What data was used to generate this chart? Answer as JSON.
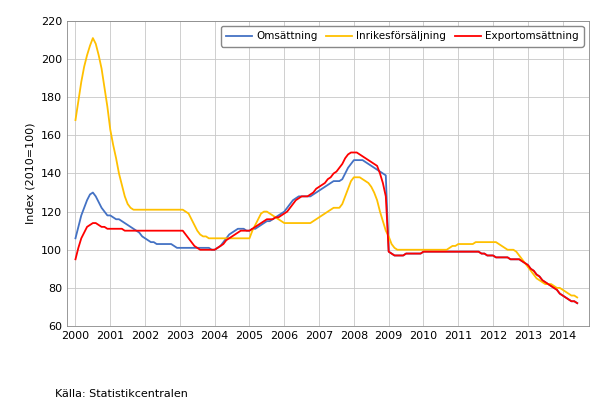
{
  "ylabel": "Index (2010=100)",
  "source_text": "Källa: Statistikcentralen",
  "ylim": [
    60,
    220
  ],
  "yticks": [
    60,
    80,
    100,
    120,
    140,
    160,
    180,
    200,
    220
  ],
  "xlim": [
    1999.75,
    2014.75
  ],
  "xticks": [
    2000,
    2001,
    2002,
    2003,
    2004,
    2005,
    2006,
    2007,
    2008,
    2009,
    2010,
    2011,
    2012,
    2013,
    2014
  ],
  "legend_labels": [
    "Omsättning",
    "Inrikesförsäljning",
    "Exportomsättning"
  ],
  "legend_colors": [
    "#4472C4",
    "#FFC000",
    "#FF0000"
  ],
  "line_width": 1.3,
  "grid_color": "#C8C8C8",
  "omsattning_x": [
    2000.0,
    2000.083,
    2000.167,
    2000.25,
    2000.333,
    2000.417,
    2000.5,
    2000.583,
    2000.667,
    2000.75,
    2000.833,
    2000.917,
    2001.0,
    2001.083,
    2001.167,
    2001.25,
    2001.333,
    2001.417,
    2001.5,
    2001.583,
    2001.667,
    2001.75,
    2001.833,
    2001.917,
    2002.0,
    2002.083,
    2002.167,
    2002.25,
    2002.333,
    2002.417,
    2002.5,
    2002.583,
    2002.667,
    2002.75,
    2002.833,
    2002.917,
    2003.0,
    2003.083,
    2003.167,
    2003.25,
    2003.333,
    2003.417,
    2003.5,
    2003.583,
    2003.667,
    2003.75,
    2003.833,
    2003.917,
    2004.0,
    2004.083,
    2004.167,
    2004.25,
    2004.333,
    2004.417,
    2004.5,
    2004.583,
    2004.667,
    2004.75,
    2004.833,
    2004.917,
    2005.0,
    2005.083,
    2005.167,
    2005.25,
    2005.333,
    2005.417,
    2005.5,
    2005.583,
    2005.667,
    2005.75,
    2005.833,
    2005.917,
    2006.0,
    2006.083,
    2006.167,
    2006.25,
    2006.333,
    2006.417,
    2006.5,
    2006.583,
    2006.667,
    2006.75,
    2006.833,
    2006.917,
    2007.0,
    2007.083,
    2007.167,
    2007.25,
    2007.333,
    2007.417,
    2007.5,
    2007.583,
    2007.667,
    2007.75,
    2007.833,
    2007.917,
    2008.0,
    2008.083,
    2008.167,
    2008.25,
    2008.333,
    2008.417,
    2008.5,
    2008.583,
    2008.667,
    2008.75,
    2008.833,
    2008.917,
    2009.0,
    2009.083,
    2009.167,
    2009.25,
    2009.333,
    2009.417,
    2009.5,
    2009.583,
    2009.667,
    2009.75,
    2009.833,
    2009.917,
    2010.0,
    2010.083,
    2010.167,
    2010.25,
    2010.333,
    2010.417,
    2010.5,
    2010.583,
    2010.667,
    2010.75,
    2010.833,
    2010.917,
    2011.0,
    2011.083,
    2011.167,
    2011.25,
    2011.333,
    2011.417,
    2011.5,
    2011.583,
    2011.667,
    2011.75,
    2011.833,
    2011.917,
    2012.0,
    2012.083,
    2012.167,
    2012.25,
    2012.333,
    2012.417,
    2012.5,
    2012.583,
    2012.667,
    2012.75,
    2012.833,
    2012.917,
    2013.0,
    2013.083,
    2013.167,
    2013.25,
    2013.333,
    2013.417,
    2013.5,
    2013.583,
    2013.667,
    2013.75,
    2013.833,
    2013.917,
    2014.0,
    2014.083,
    2014.167,
    2014.25,
    2014.333,
    2014.417
  ],
  "omsattning_y": [
    106,
    112,
    118,
    122,
    126,
    129,
    130,
    128,
    125,
    122,
    120,
    118,
    118,
    117,
    116,
    116,
    115,
    114,
    113,
    112,
    111,
    110,
    109,
    107,
    106,
    105,
    104,
    104,
    103,
    103,
    103,
    103,
    103,
    103,
    102,
    101,
    101,
    101,
    101,
    101,
    101,
    101,
    101,
    101,
    101,
    101,
    101,
    100,
    100,
    101,
    102,
    104,
    106,
    108,
    109,
    110,
    111,
    111,
    111,
    110,
    110,
    111,
    111,
    112,
    113,
    114,
    115,
    115,
    116,
    117,
    118,
    119,
    120,
    122,
    124,
    126,
    127,
    128,
    128,
    128,
    128,
    128,
    129,
    130,
    131,
    132,
    133,
    134,
    135,
    136,
    136,
    136,
    137,
    140,
    143,
    145,
    147,
    147,
    147,
    147,
    146,
    145,
    144,
    143,
    142,
    141,
    140,
    139,
    99,
    98,
    97,
    97,
    97,
    97,
    98,
    98,
    98,
    98,
    98,
    98,
    99,
    99,
    99,
    99,
    99,
    99,
    99,
    99,
    99,
    99,
    99,
    99,
    99,
    99,
    99,
    99,
    99,
    99,
    99,
    99,
    98,
    98,
    97,
    97,
    97,
    96,
    96,
    96,
    96,
    96,
    95,
    95,
    95,
    95,
    94,
    93,
    92,
    90,
    89,
    87,
    86,
    84,
    83,
    82,
    81,
    80,
    79,
    77,
    76,
    75,
    74,
    73,
    73,
    72
  ],
  "inrikes_x": [
    2000.0,
    2000.083,
    2000.167,
    2000.25,
    2000.333,
    2000.417,
    2000.5,
    2000.583,
    2000.667,
    2000.75,
    2000.833,
    2000.917,
    2001.0,
    2001.083,
    2001.167,
    2001.25,
    2001.333,
    2001.417,
    2001.5,
    2001.583,
    2001.667,
    2001.75,
    2001.833,
    2001.917,
    2002.0,
    2002.083,
    2002.167,
    2002.25,
    2002.333,
    2002.417,
    2002.5,
    2002.583,
    2002.667,
    2002.75,
    2002.833,
    2002.917,
    2003.0,
    2003.083,
    2003.167,
    2003.25,
    2003.333,
    2003.417,
    2003.5,
    2003.583,
    2003.667,
    2003.75,
    2003.833,
    2003.917,
    2004.0,
    2004.083,
    2004.167,
    2004.25,
    2004.333,
    2004.417,
    2004.5,
    2004.583,
    2004.667,
    2004.75,
    2004.833,
    2004.917,
    2005.0,
    2005.083,
    2005.167,
    2005.25,
    2005.333,
    2005.417,
    2005.5,
    2005.583,
    2005.667,
    2005.75,
    2005.833,
    2005.917,
    2006.0,
    2006.083,
    2006.167,
    2006.25,
    2006.333,
    2006.417,
    2006.5,
    2006.583,
    2006.667,
    2006.75,
    2006.833,
    2006.917,
    2007.0,
    2007.083,
    2007.167,
    2007.25,
    2007.333,
    2007.417,
    2007.5,
    2007.583,
    2007.667,
    2007.75,
    2007.833,
    2007.917,
    2008.0,
    2008.083,
    2008.167,
    2008.25,
    2008.333,
    2008.417,
    2008.5,
    2008.583,
    2008.667,
    2008.75,
    2008.833,
    2008.917,
    2009.0,
    2009.083,
    2009.167,
    2009.25,
    2009.333,
    2009.417,
    2009.5,
    2009.583,
    2009.667,
    2009.75,
    2009.833,
    2009.917,
    2010.0,
    2010.083,
    2010.167,
    2010.25,
    2010.333,
    2010.417,
    2010.5,
    2010.583,
    2010.667,
    2010.75,
    2010.833,
    2010.917,
    2011.0,
    2011.083,
    2011.167,
    2011.25,
    2011.333,
    2011.417,
    2011.5,
    2011.583,
    2011.667,
    2011.75,
    2011.833,
    2011.917,
    2012.0,
    2012.083,
    2012.167,
    2012.25,
    2012.333,
    2012.417,
    2012.5,
    2012.583,
    2012.667,
    2012.75,
    2012.833,
    2012.917,
    2013.0,
    2013.083,
    2013.167,
    2013.25,
    2013.333,
    2013.417,
    2013.5,
    2013.583,
    2013.667,
    2013.75,
    2013.833,
    2013.917,
    2014.0,
    2014.083,
    2014.167,
    2014.25,
    2014.333,
    2014.417
  ],
  "inrikes_y": [
    168,
    178,
    188,
    196,
    202,
    207,
    211,
    208,
    202,
    195,
    185,
    175,
    163,
    155,
    148,
    140,
    134,
    128,
    124,
    122,
    121,
    121,
    121,
    121,
    121,
    121,
    121,
    121,
    121,
    121,
    121,
    121,
    121,
    121,
    121,
    121,
    121,
    121,
    120,
    119,
    116,
    113,
    110,
    108,
    107,
    107,
    106,
    106,
    106,
    106,
    106,
    106,
    106,
    106,
    106,
    106,
    106,
    106,
    106,
    106,
    106,
    110,
    113,
    116,
    119,
    120,
    120,
    119,
    118,
    117,
    116,
    115,
    114,
    114,
    114,
    114,
    114,
    114,
    114,
    114,
    114,
    114,
    115,
    116,
    117,
    118,
    119,
    120,
    121,
    122,
    122,
    122,
    124,
    128,
    132,
    136,
    138,
    138,
    138,
    137,
    136,
    135,
    133,
    130,
    126,
    120,
    115,
    110,
    107,
    103,
    101,
    100,
    100,
    100,
    100,
    100,
    100,
    100,
    100,
    100,
    100,
    100,
    100,
    100,
    100,
    100,
    100,
    100,
    100,
    101,
    102,
    102,
    103,
    103,
    103,
    103,
    103,
    103,
    104,
    104,
    104,
    104,
    104,
    104,
    104,
    104,
    103,
    102,
    101,
    100,
    100,
    100,
    99,
    97,
    95,
    93,
    91,
    89,
    87,
    85,
    84,
    83,
    82,
    82,
    82,
    81,
    80,
    80,
    79,
    78,
    77,
    76,
    76,
    75
  ],
  "export_x": [
    2000.0,
    2000.083,
    2000.167,
    2000.25,
    2000.333,
    2000.417,
    2000.5,
    2000.583,
    2000.667,
    2000.75,
    2000.833,
    2000.917,
    2001.0,
    2001.083,
    2001.167,
    2001.25,
    2001.333,
    2001.417,
    2001.5,
    2001.583,
    2001.667,
    2001.75,
    2001.833,
    2001.917,
    2002.0,
    2002.083,
    2002.167,
    2002.25,
    2002.333,
    2002.417,
    2002.5,
    2002.583,
    2002.667,
    2002.75,
    2002.833,
    2002.917,
    2003.0,
    2003.083,
    2003.167,
    2003.25,
    2003.333,
    2003.417,
    2003.5,
    2003.583,
    2003.667,
    2003.75,
    2003.833,
    2003.917,
    2004.0,
    2004.083,
    2004.167,
    2004.25,
    2004.333,
    2004.417,
    2004.5,
    2004.583,
    2004.667,
    2004.75,
    2004.833,
    2004.917,
    2005.0,
    2005.083,
    2005.167,
    2005.25,
    2005.333,
    2005.417,
    2005.5,
    2005.583,
    2005.667,
    2005.75,
    2005.833,
    2005.917,
    2006.0,
    2006.083,
    2006.167,
    2006.25,
    2006.333,
    2006.417,
    2006.5,
    2006.583,
    2006.667,
    2006.75,
    2006.833,
    2006.917,
    2007.0,
    2007.083,
    2007.167,
    2007.25,
    2007.333,
    2007.417,
    2007.5,
    2007.583,
    2007.667,
    2007.75,
    2007.833,
    2007.917,
    2008.0,
    2008.083,
    2008.167,
    2008.25,
    2008.333,
    2008.417,
    2008.5,
    2008.583,
    2008.667,
    2008.75,
    2008.833,
    2008.917,
    2009.0,
    2009.083,
    2009.167,
    2009.25,
    2009.333,
    2009.417,
    2009.5,
    2009.583,
    2009.667,
    2009.75,
    2009.833,
    2009.917,
    2010.0,
    2010.083,
    2010.167,
    2010.25,
    2010.333,
    2010.417,
    2010.5,
    2010.583,
    2010.667,
    2010.75,
    2010.833,
    2010.917,
    2011.0,
    2011.083,
    2011.167,
    2011.25,
    2011.333,
    2011.417,
    2011.5,
    2011.583,
    2011.667,
    2011.75,
    2011.833,
    2011.917,
    2012.0,
    2012.083,
    2012.167,
    2012.25,
    2012.333,
    2012.417,
    2012.5,
    2012.583,
    2012.667,
    2012.75,
    2012.833,
    2012.917,
    2013.0,
    2013.083,
    2013.167,
    2013.25,
    2013.333,
    2013.417,
    2013.5,
    2013.583,
    2013.667,
    2013.75,
    2013.833,
    2013.917,
    2014.0,
    2014.083,
    2014.167,
    2014.25,
    2014.333,
    2014.417
  ],
  "export_y": [
    95,
    101,
    106,
    109,
    112,
    113,
    114,
    114,
    113,
    112,
    112,
    111,
    111,
    111,
    111,
    111,
    111,
    110,
    110,
    110,
    110,
    110,
    110,
    110,
    110,
    110,
    110,
    110,
    110,
    110,
    110,
    110,
    110,
    110,
    110,
    110,
    110,
    110,
    108,
    106,
    104,
    102,
    101,
    100,
    100,
    100,
    100,
    100,
    100,
    101,
    102,
    103,
    105,
    106,
    107,
    108,
    109,
    110,
    110,
    110,
    110,
    111,
    112,
    113,
    114,
    115,
    116,
    116,
    116,
    117,
    117,
    118,
    119,
    120,
    122,
    124,
    126,
    127,
    128,
    128,
    128,
    129,
    130,
    132,
    133,
    134,
    135,
    137,
    138,
    140,
    141,
    143,
    145,
    148,
    150,
    151,
    151,
    151,
    150,
    149,
    148,
    147,
    146,
    145,
    144,
    140,
    135,
    128,
    99,
    98,
    97,
    97,
    97,
    97,
    98,
    98,
    98,
    98,
    98,
    98,
    99,
    99,
    99,
    99,
    99,
    99,
    99,
    99,
    99,
    99,
    99,
    99,
    99,
    99,
    99,
    99,
    99,
    99,
    99,
    99,
    98,
    98,
    97,
    97,
    97,
    96,
    96,
    96,
    96,
    96,
    95,
    95,
    95,
    95,
    94,
    93,
    92,
    90,
    89,
    87,
    86,
    84,
    83,
    82,
    81,
    80,
    79,
    77,
    76,
    75,
    74,
    73,
    73,
    72
  ]
}
